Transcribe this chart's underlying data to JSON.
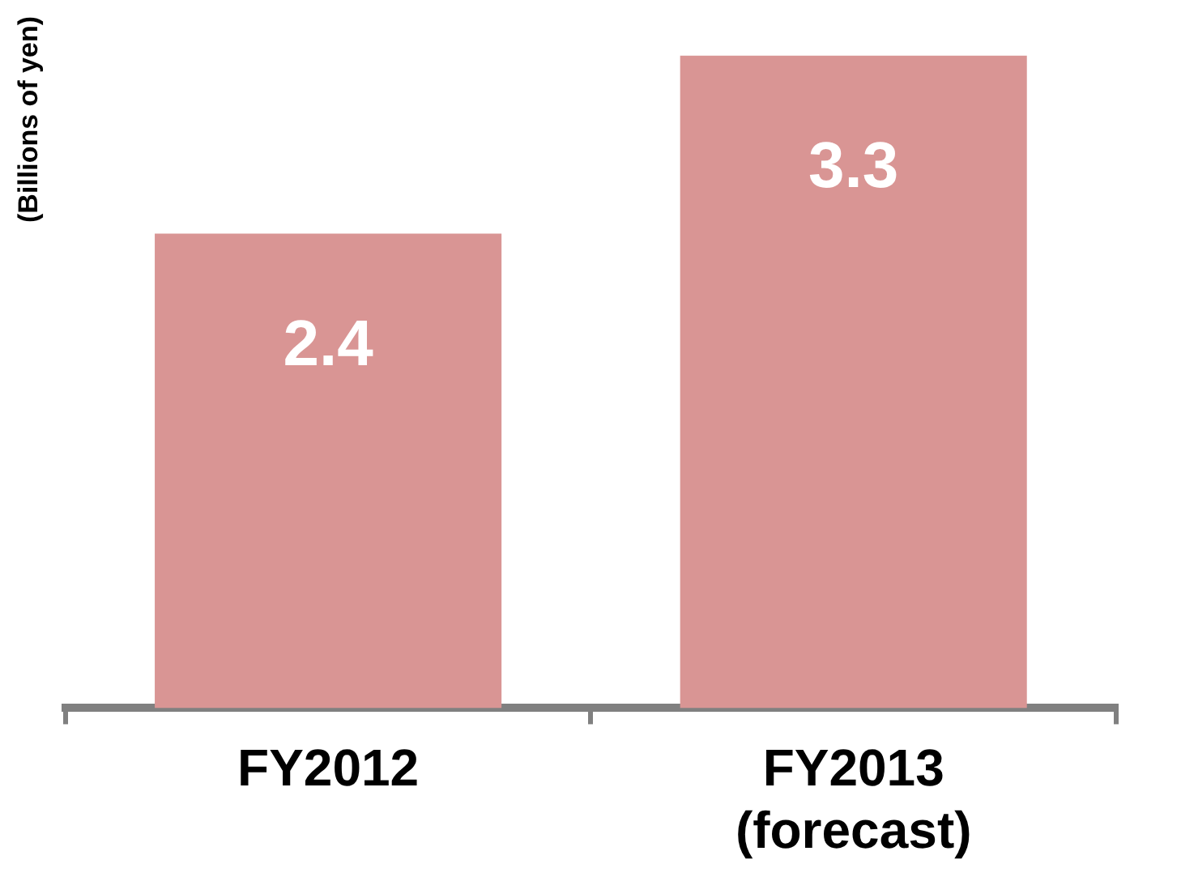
{
  "chart_data": {
    "type": "bar",
    "ylabel": "(Billions of yen)",
    "categories": [
      "FY2012",
      "FY2013 (forecast)"
    ],
    "values": [
      2.4,
      3.3
    ],
    "color": "#d99594",
    "data_labels": true,
    "grid": false,
    "legend": false
  }
}
